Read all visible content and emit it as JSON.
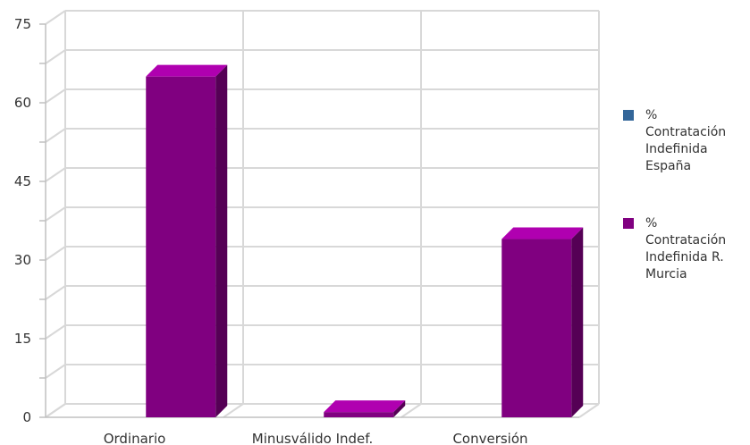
{
  "chart_data": {
    "type": "bar",
    "categories": [
      "Ordinario",
      "Minusválido Indef.",
      "Conversión"
    ],
    "series": [
      {
        "name": "% Contratación Indefinida España",
        "legend_lines": [
          "%",
          "Contratación",
          "Indefinida",
          "España"
        ],
        "color": "#336699",
        "values": [
          0,
          0,
          0
        ]
      },
      {
        "name": "% Contratación Indefinida R. Murcia",
        "legend_lines": [
          "%",
          "Contratación",
          "Indefinida R.",
          "Murcia"
        ],
        "color": "#800080",
        "top_color": "#b000b0",
        "side_color": "#550055",
        "values": [
          65,
          1,
          34
        ]
      }
    ],
    "yticks": [
      0,
      15,
      30,
      45,
      60,
      75
    ],
    "ylim": [
      0,
      75
    ],
    "grid": true,
    "legend_position": "right",
    "title": "",
    "xlabel": "",
    "ylabel": ""
  }
}
